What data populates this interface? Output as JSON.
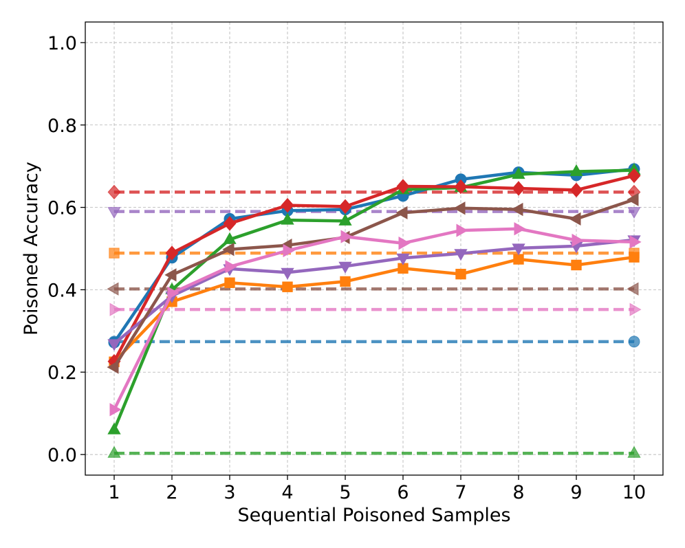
{
  "chart_data": {
    "type": "line",
    "title": "",
    "xlabel": "Sequential Poisoned Samples",
    "ylabel": "Poisoned Accuracy",
    "x": [
      1,
      2,
      3,
      4,
      5,
      6,
      7,
      8,
      9,
      10
    ],
    "xlim": [
      0.5,
      10.5
    ],
    "ylim": [
      -0.05,
      1.05
    ],
    "xticks": [
      "1",
      "2",
      "3",
      "4",
      "5",
      "6",
      "7",
      "8",
      "9",
      "10"
    ],
    "yticks": [
      "0.0",
      "0.2",
      "0.4",
      "0.6",
      "0.8",
      "1.0"
    ],
    "grid": true,
    "legend": "none",
    "series": [
      {
        "name": "blue",
        "color": "#1f77b4",
        "marker": "circle",
        "values": [
          0.272,
          0.478,
          0.572,
          0.592,
          0.595,
          0.628,
          0.668,
          0.685,
          0.678,
          0.693
        ],
        "baseline": 0.274
      },
      {
        "name": "orange",
        "color": "#ff7f0e",
        "marker": "square",
        "values": [
          0.225,
          0.371,
          0.417,
          0.407,
          0.42,
          0.452,
          0.438,
          0.474,
          0.46,
          0.479
        ],
        "baseline": 0.489
      },
      {
        "name": "green",
        "color": "#2ca02c",
        "marker": "triangle-up",
        "values": [
          0.06,
          0.4,
          0.522,
          0.569,
          0.567,
          0.643,
          0.648,
          0.68,
          0.687,
          0.69
        ],
        "baseline": 0.003
      },
      {
        "name": "red",
        "color": "#d62728",
        "marker": "diamond",
        "values": [
          0.226,
          0.489,
          0.561,
          0.605,
          0.602,
          0.651,
          0.65,
          0.646,
          0.642,
          0.677
        ],
        "baseline": 0.637
      },
      {
        "name": "purple",
        "color": "#9467bd",
        "marker": "triangle-down",
        "values": [
          0.269,
          0.385,
          0.451,
          0.442,
          0.457,
          0.477,
          0.488,
          0.501,
          0.506,
          0.521
        ],
        "baseline": 0.59
      },
      {
        "name": "brown",
        "color": "#8c564b",
        "marker": "triangle-left",
        "values": [
          0.212,
          0.436,
          0.498,
          0.508,
          0.527,
          0.587,
          0.598,
          0.595,
          0.572,
          0.619
        ],
        "baseline": 0.402
      },
      {
        "name": "pink",
        "color": "#e377c2",
        "marker": "triangle-right",
        "values": [
          0.109,
          0.392,
          0.456,
          0.495,
          0.529,
          0.513,
          0.544,
          0.548,
          0.52,
          0.516
        ],
        "baseline": 0.352
      }
    ]
  }
}
